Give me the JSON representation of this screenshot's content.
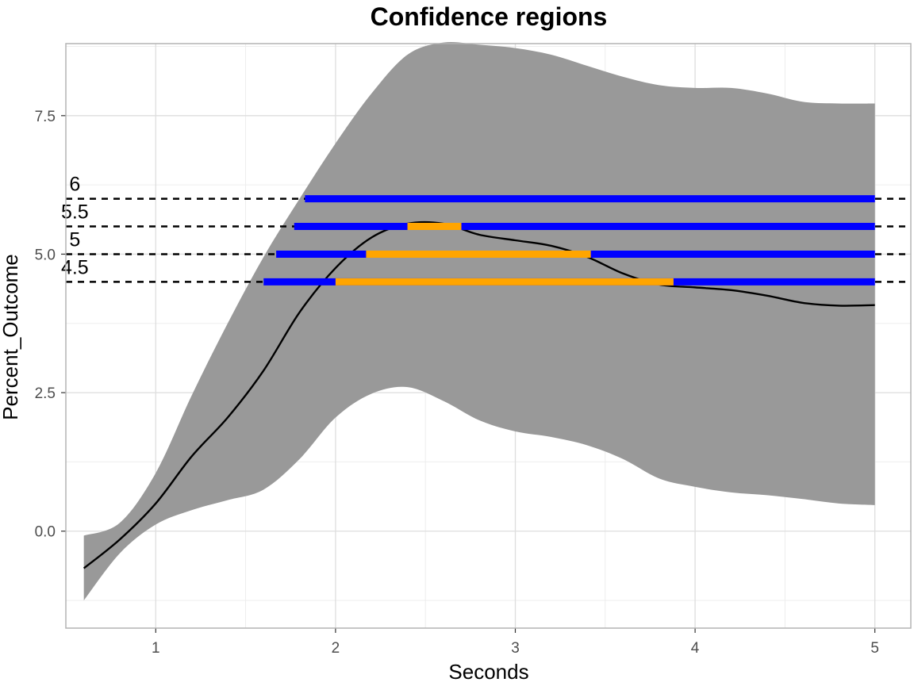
{
  "chart_data": {
    "type": "line",
    "title": "Confidence regions",
    "xlabel": "Seconds",
    "ylabel": "Percent_Outcome",
    "xlim": [
      0.5,
      5.2
    ],
    "ylim": [
      -1.75,
      8.8
    ],
    "xticks": [
      1,
      2,
      3,
      4,
      5
    ],
    "xtick_labels": [
      "1",
      "2",
      "3",
      "4",
      "5"
    ],
    "yticks": [
      0.0,
      2.5,
      5.0,
      7.5
    ],
    "ytick_labels": [
      "0.0",
      "2.5",
      "5.0",
      "7.5"
    ],
    "grid": true,
    "mean_curve": {
      "x": [
        0.6,
        0.8,
        1.0,
        1.2,
        1.4,
        1.6,
        1.8,
        2.0,
        2.2,
        2.4,
        2.6,
        2.8,
        3.0,
        3.2,
        3.4,
        3.6,
        3.8,
        4.0,
        4.2,
        4.4,
        4.6,
        4.8,
        5.0
      ],
      "y": [
        -0.67,
        -0.15,
        0.5,
        1.35,
        2.05,
        2.9,
        3.95,
        4.75,
        5.3,
        5.55,
        5.55,
        5.35,
        5.25,
        5.15,
        4.95,
        4.65,
        4.45,
        4.4,
        4.35,
        4.25,
        4.12,
        4.07,
        4.08
      ]
    },
    "band_upper": {
      "x": [
        0.6,
        0.8,
        1.0,
        1.2,
        1.4,
        1.6,
        1.8,
        2.0,
        2.2,
        2.4,
        2.6,
        2.8,
        3.0,
        3.2,
        3.4,
        3.6,
        3.8,
        4.0,
        4.2,
        4.4,
        4.6,
        4.8,
        5.0
      ],
      "y": [
        -0.08,
        0.15,
        1.05,
        2.45,
        3.75,
        4.95,
        6.0,
        7.0,
        7.9,
        8.6,
        8.82,
        8.78,
        8.72,
        8.6,
        8.4,
        8.2,
        8.05,
        8.0,
        8.0,
        7.9,
        7.75,
        7.72,
        7.72
      ]
    },
    "band_lower": {
      "x": [
        0.6,
        0.8,
        1.0,
        1.2,
        1.4,
        1.6,
        1.8,
        2.0,
        2.2,
        2.4,
        2.6,
        2.8,
        3.0,
        3.2,
        3.4,
        3.6,
        3.8,
        4.0,
        4.2,
        4.4,
        4.6,
        4.8,
        5.0
      ],
      "y": [
        -1.25,
        -0.4,
        0.12,
        0.38,
        0.56,
        0.75,
        1.3,
        2.05,
        2.48,
        2.6,
        2.35,
        2.0,
        1.8,
        1.7,
        1.55,
        1.3,
        0.95,
        0.8,
        0.7,
        0.65,
        0.58,
        0.5,
        0.47
      ]
    },
    "thresholds": [
      {
        "level": 6.0,
        "label": "6",
        "region_start": 1.83,
        "region_end": 5.0,
        "exceed_start": null,
        "exceed_end": null
      },
      {
        "level": 5.5,
        "label": "5.5",
        "region_start": 1.77,
        "region_end": 5.0,
        "exceed_start": 2.4,
        "exceed_end": 2.7
      },
      {
        "level": 5.0,
        "label": "5",
        "region_start": 1.67,
        "region_end": 5.0,
        "exceed_start": 2.17,
        "exceed_end": 3.42
      },
      {
        "level": 4.5,
        "label": "4.5",
        "region_start": 1.6,
        "region_end": 5.0,
        "exceed_start": 2.0,
        "exceed_end": 3.88
      }
    ],
    "colors": {
      "band": "#999999",
      "mean_line": "#000000",
      "region": "#0000ff",
      "exceed": "#ffa500",
      "threshold_line": "#000000",
      "grid_major": "#dedede",
      "grid_minor": "#ededed",
      "panel_border": "#b3b3b3"
    }
  }
}
